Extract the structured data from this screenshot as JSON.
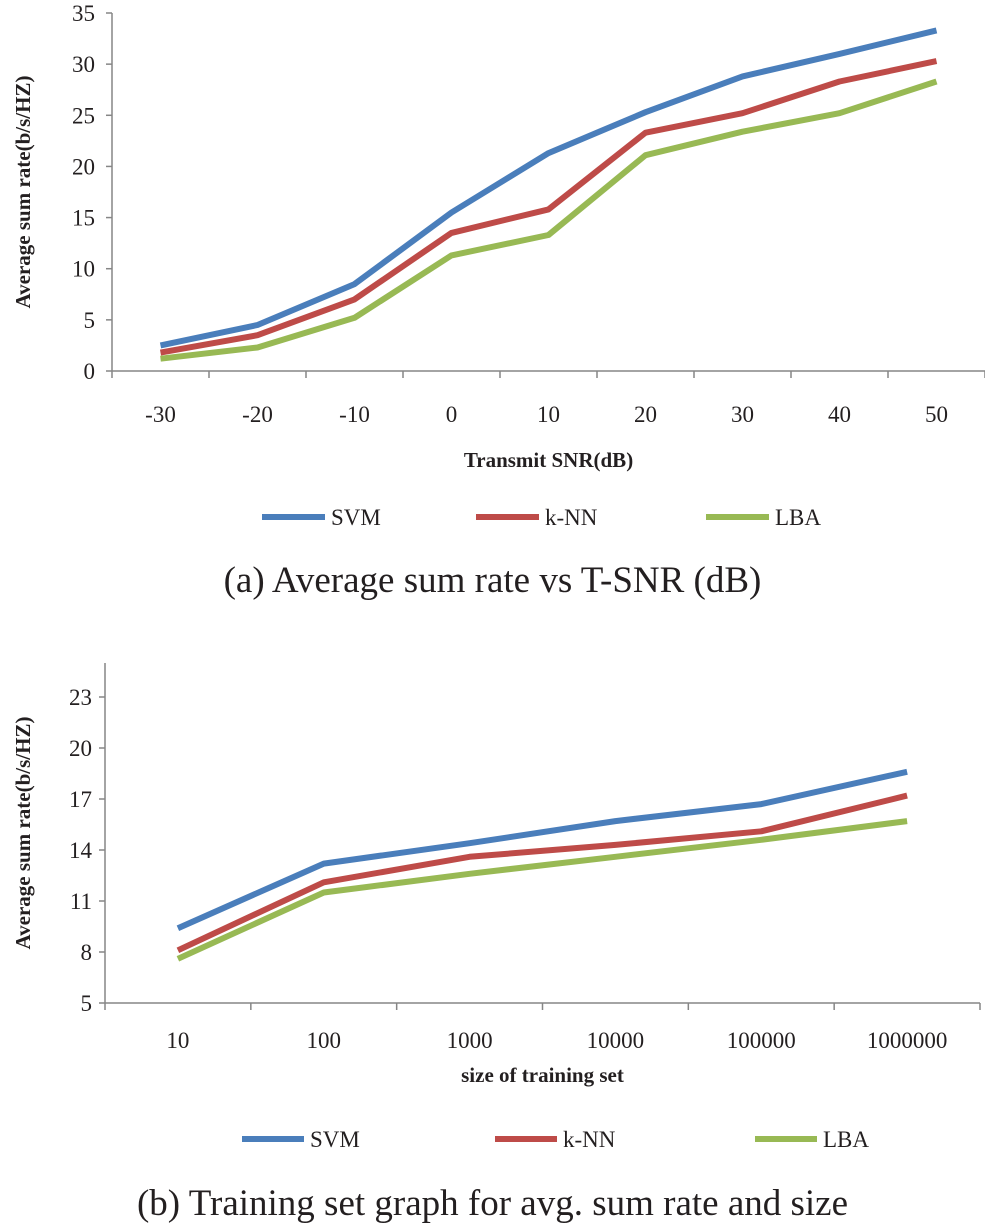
{
  "chart_data": [
    {
      "type": "line",
      "title": "",
      "xlabel": "Transmit SNR(dB)",
      "ylabel": "Average sum rate(b/s/HZ)",
      "categories": [
        "-30",
        "-20",
        "-10",
        "0",
        "10",
        "20",
        "30",
        "40",
        "50"
      ],
      "ylim": [
        0,
        35
      ],
      "yticks": [
        0,
        5,
        10,
        15,
        20,
        25,
        30,
        35
      ],
      "series": [
        {
          "name": "SVM",
          "color": "#4a7ebb",
          "values": [
            2.5,
            4.5,
            8.5,
            15.5,
            21.3,
            25.3,
            28.8,
            31.0,
            33.3
          ]
        },
        {
          "name": "k-NN",
          "color": "#be4b48",
          "values": [
            1.8,
            3.5,
            7.0,
            13.5,
            15.8,
            23.3,
            25.2,
            28.3,
            30.3
          ]
        },
        {
          "name": "LBA",
          "color": "#98b954",
          "values": [
            1.2,
            2.3,
            5.2,
            11.3,
            13.3,
            21.1,
            23.4,
            25.2,
            28.3
          ]
        }
      ],
      "legend_position": "bottom",
      "caption": "(a) Average sum rate vs T-SNR (dB)"
    },
    {
      "type": "line",
      "title": "",
      "xlabel": "size of training set",
      "ylabel": "Average sum rate(b/s/HZ)",
      "categories": [
        "10",
        "100",
        "1000",
        "10000",
        "100000",
        "1000000"
      ],
      "ylim": [
        5,
        25
      ],
      "yticks": [
        5,
        8,
        11,
        14,
        17,
        20,
        23
      ],
      "series": [
        {
          "name": "SVM",
          "color": "#4a7ebb",
          "values": [
            9.4,
            13.2,
            14.4,
            15.7,
            16.7,
            18.6
          ]
        },
        {
          "name": "k-NN",
          "color": "#be4b48",
          "values": [
            8.1,
            12.1,
            13.6,
            14.3,
            15.1,
            17.2
          ]
        },
        {
          "name": "LBA",
          "color": "#98b954",
          "values": [
            7.6,
            11.5,
            12.6,
            13.6,
            14.6,
            15.7
          ]
        }
      ],
      "legend_position": "bottom",
      "caption": "(b) Training set graph for avg. sum rate and size"
    }
  ]
}
